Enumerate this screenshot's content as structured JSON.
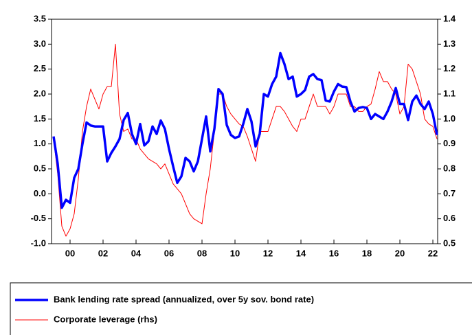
{
  "chart_data": {
    "type": "line",
    "x": [
      1999.0,
      1999.25,
      1999.5,
      1999.75,
      2000.0,
      2000.25,
      2000.5,
      2000.75,
      2001.0,
      2001.25,
      2001.5,
      2001.75,
      2002.0,
      2002.25,
      2002.5,
      2002.75,
      2003.0,
      2003.25,
      2003.5,
      2003.75,
      2004.0,
      2004.25,
      2004.5,
      2004.75,
      2005.0,
      2005.25,
      2005.5,
      2005.75,
      2006.0,
      2006.25,
      2006.5,
      2006.75,
      2007.0,
      2007.25,
      2007.5,
      2007.75,
      2008.0,
      2008.25,
      2008.5,
      2008.75,
      2009.0,
      2009.25,
      2009.5,
      2009.75,
      2010.0,
      2010.25,
      2010.5,
      2010.75,
      2011.0,
      2011.25,
      2011.5,
      2011.75,
      2012.0,
      2012.25,
      2012.5,
      2012.75,
      2013.0,
      2013.25,
      2013.5,
      2013.75,
      2014.0,
      2014.25,
      2014.5,
      2014.75,
      2015.0,
      2015.25,
      2015.5,
      2015.75,
      2016.0,
      2016.25,
      2016.5,
      2016.75,
      2017.0,
      2017.25,
      2017.5,
      2017.75,
      2018.0,
      2018.25,
      2018.5,
      2018.75,
      2019.0,
      2019.25,
      2019.5,
      2019.75,
      2020.0,
      2020.25,
      2020.5,
      2020.75,
      2021.0,
      2021.25,
      2021.5,
      2021.75,
      2022.0,
      2022.25
    ],
    "series": [
      {
        "name": "Bank lending rate spread (annualized, over 5y sov. bond rate)",
        "color": "#0000ff",
        "width": 3.5,
        "values": [
          1.15,
          0.6,
          -0.28,
          -0.12,
          -0.18,
          0.32,
          0.5,
          1.0,
          1.43,
          1.37,
          1.35,
          1.35,
          1.35,
          0.65,
          0.82,
          0.95,
          1.1,
          1.48,
          1.62,
          1.2,
          1.0,
          1.4,
          0.97,
          1.05,
          1.35,
          1.2,
          1.47,
          1.3,
          0.9,
          0.55,
          0.22,
          0.35,
          0.72,
          0.65,
          0.45,
          0.65,
          1.1,
          1.55,
          0.85,
          1.3,
          2.1,
          2.0,
          1.38,
          1.18,
          1.12,
          1.15,
          1.4,
          1.7,
          1.45,
          0.95,
          1.2,
          2.0,
          1.95,
          2.2,
          2.35,
          2.82,
          2.6,
          2.3,
          2.35,
          1.95,
          2.0,
          2.08,
          2.35,
          2.4,
          2.3,
          2.28,
          1.87,
          1.85,
          2.05,
          2.2,
          2.15,
          2.14,
          1.85,
          1.65,
          1.72,
          1.74,
          1.72,
          1.5,
          1.6,
          1.55,
          1.5,
          1.65,
          1.85,
          2.12,
          1.8,
          1.8,
          1.48,
          1.85,
          1.97,
          1.8,
          1.7,
          1.85,
          1.6,
          1.18
        ]
      },
      {
        "name": "Corporate leverage (rhs)",
        "color": "#ff0000",
        "width": 1,
        "axis": "y2",
        "values": [
          0.92,
          0.78,
          0.57,
          0.53,
          0.56,
          0.62,
          0.76,
          0.95,
          1.05,
          1.12,
          1.08,
          1.04,
          1.1,
          1.13,
          1.13,
          1.3,
          1.02,
          0.95,
          0.96,
          0.92,
          0.92,
          0.88,
          0.86,
          0.84,
          0.83,
          0.82,
          0.8,
          0.82,
          0.78,
          0.74,
          0.72,
          0.7,
          0.66,
          0.62,
          0.6,
          0.59,
          0.58,
          0.7,
          0.8,
          0.95,
          1.1,
          1.1,
          1.05,
          1.02,
          1.0,
          0.98,
          0.97,
          0.93,
          0.88,
          0.83,
          0.95,
          0.95,
          0.95,
          1.0,
          1.05,
          1.05,
          1.03,
          1.0,
          0.97,
          0.95,
          1.0,
          1.0,
          1.05,
          1.1,
          1.05,
          1.05,
          1.05,
          1.02,
          1.05,
          1.1,
          1.1,
          1.1,
          1.05,
          1.05,
          1.03,
          1.03,
          1.05,
          1.06,
          1.12,
          1.19,
          1.15,
          1.15,
          1.12,
          1.1,
          1.02,
          1.05,
          1.22,
          1.2,
          1.15,
          1.1,
          1.0,
          0.98,
          0.97,
          0.92
        ]
      }
    ],
    "xlim": [
      1998.875,
      2022.29
    ],
    "xticks": [
      {
        "value": 2000,
        "label": "00"
      },
      {
        "value": 2002,
        "label": "02"
      },
      {
        "value": 2004,
        "label": "04"
      },
      {
        "value": 2006,
        "label": "06"
      },
      {
        "value": 2008,
        "label": "08"
      },
      {
        "value": 2010,
        "label": "10"
      },
      {
        "value": 2012,
        "label": "12"
      },
      {
        "value": 2014,
        "label": "14"
      },
      {
        "value": 2016,
        "label": "16"
      },
      {
        "value": 2018,
        "label": "18"
      },
      {
        "value": 2020,
        "label": "20"
      },
      {
        "value": 2022,
        "label": "22"
      }
    ],
    "ylim": [
      -1.0,
      3.5
    ],
    "yticks": [
      {
        "value": -1.0,
        "label": "-1.0"
      },
      -0.5,
      {
        "value": 0,
        "label": "0.0"
      },
      0.5,
      {
        "value": 1,
        "label": "1.0"
      },
      1.5,
      {
        "value": 2,
        "label": "2.0"
      },
      2.5,
      {
        "value": 3,
        "label": "3.0"
      },
      3.5
    ],
    "y2lim": [
      0.5,
      1.4
    ],
    "y2ticks": [
      0.5,
      0.6,
      0.7,
      0.8,
      0.9,
      {
        "value": 1,
        "label": "1.0"
      },
      1.1,
      1.2,
      1.3,
      1.4
    ]
  }
}
